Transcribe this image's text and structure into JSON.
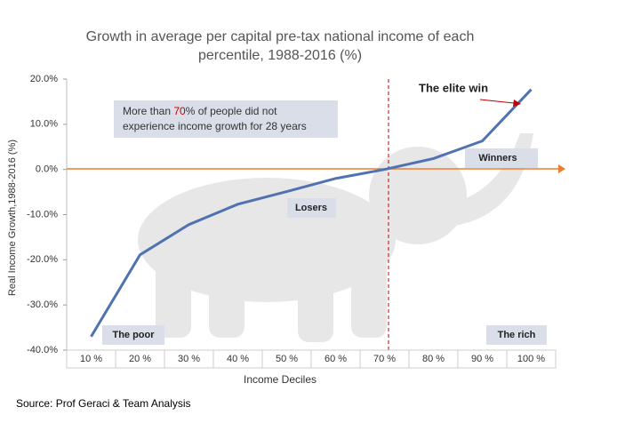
{
  "chart_data": {
    "type": "line",
    "title": [
      "Growth in average per capital pre-tax national income of each",
      "percentile, 1988-2016 (%)"
    ],
    "categories": [
      "10 %",
      "20 %",
      "30 %",
      "40 %",
      "50 %",
      "60 %",
      "70 %",
      "80 %",
      "90 %",
      "100 %"
    ],
    "values": [
      -37,
      -18.9,
      -12.2,
      -7.7,
      -4.9,
      -2,
      0,
      2.4,
      6.3,
      17.7
    ],
    "color": "#4f72b0",
    "ylim": [
      -40,
      20
    ],
    "yticks": [
      {
        "value": -40,
        "label": "-40.0%"
      },
      {
        "value": -30,
        "label": "-30.0%"
      },
      {
        "value": -20,
        "label": "-20.0%"
      },
      {
        "value": -10,
        "label": "-10.0%"
      },
      {
        "value": 0,
        "label": "0.0%"
      },
      {
        "value": 10,
        "label": "10.0%"
      },
      {
        "value": 20,
        "label": "20.0%"
      }
    ],
    "x_label": "Income Deciles",
    "y_label": "Real Income Growth,1988-2016 (%)",
    "annotations": {
      "elite": "The elite win",
      "winners": "Winners",
      "losers": "Losers",
      "poor": "The poor",
      "rich": "The rich",
      "note": [
        "More than ",
        "70",
        "% of people did not",
        "experience income growth for 28 years"
      ]
    },
    "source": "Source: Prof Geraci & Team Analysis"
  }
}
